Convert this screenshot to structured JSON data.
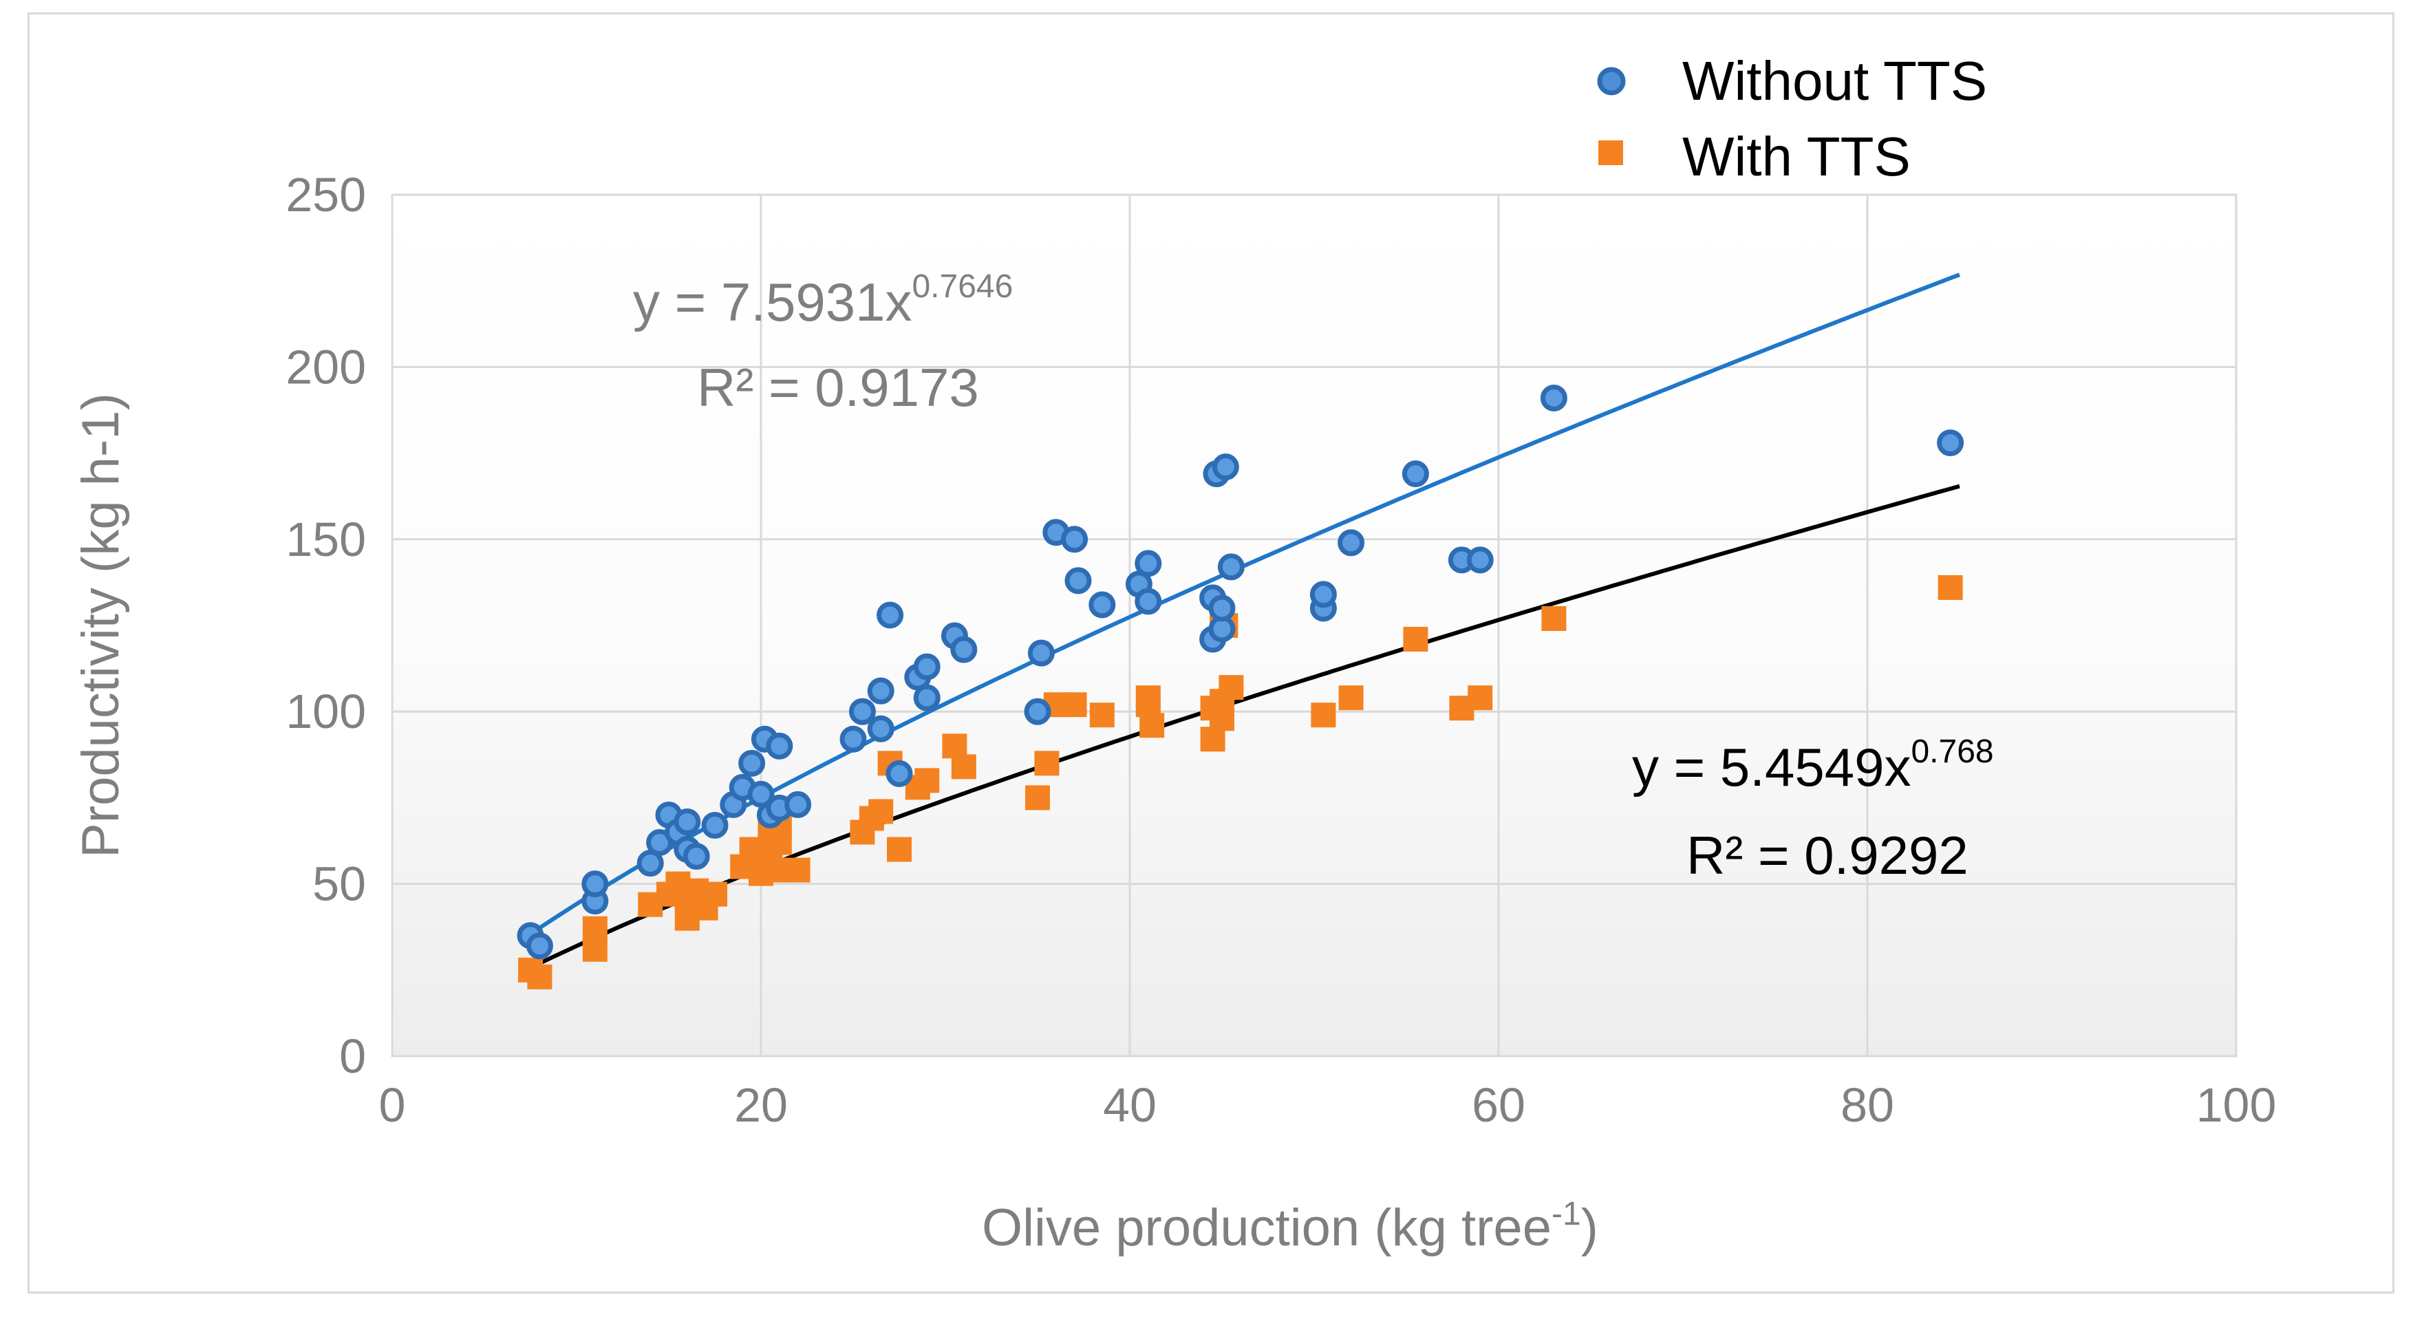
{
  "chart_data": {
    "type": "scatter",
    "title": "",
    "xlabel": "Olive production (kg tree",
    "xlabel_sup": "-1",
    "xlabel_suffix": ")",
    "ylabel": "Productivity (kg h-1)",
    "xlim": [
      0,
      100
    ],
    "ylim": [
      0,
      250
    ],
    "x_ticks": [
      0,
      20,
      40,
      60,
      80,
      100
    ],
    "y_ticks": [
      0,
      50,
      100,
      150,
      200,
      250
    ],
    "x_tick_labels": [
      "0",
      "20",
      "40",
      "60",
      "80",
      "100"
    ],
    "y_tick_labels": [
      "0",
      "50",
      "100",
      "150",
      "200",
      "250"
    ],
    "grid": true,
    "legend_position": "top-right",
    "series": [
      {
        "name": "Without TTS",
        "marker": "circle",
        "color": "#4472c4",
        "edge_color": "#2e6db4",
        "points": [
          [
            7.5,
            35
          ],
          [
            8,
            32
          ],
          [
            11,
            45
          ],
          [
            11,
            50
          ],
          [
            14,
            56
          ],
          [
            14.5,
            62
          ],
          [
            15,
            70
          ],
          [
            15.5,
            65
          ],
          [
            16,
            60
          ],
          [
            16,
            68
          ],
          [
            16.5,
            58
          ],
          [
            17.5,
            67
          ],
          [
            18.5,
            73
          ],
          [
            19,
            78
          ],
          [
            19.5,
            85
          ],
          [
            20,
            76
          ],
          [
            20.2,
            92
          ],
          [
            20.5,
            70
          ],
          [
            21,
            90
          ],
          [
            21,
            72
          ],
          [
            22,
            73
          ],
          [
            25,
            92
          ],
          [
            25.5,
            100
          ],
          [
            26.5,
            95
          ],
          [
            26.5,
            106
          ],
          [
            27,
            128
          ],
          [
            27.5,
            82
          ],
          [
            28.5,
            110
          ],
          [
            29,
            104
          ],
          [
            29,
            113
          ],
          [
            30.5,
            122
          ],
          [
            31,
            118
          ],
          [
            35,
            100
          ],
          [
            35.2,
            117
          ],
          [
            36,
            152
          ],
          [
            37,
            150
          ],
          [
            37.2,
            138
          ],
          [
            38.5,
            131
          ],
          [
            40.5,
            137
          ],
          [
            41,
            143
          ],
          [
            41,
            132
          ],
          [
            44.5,
            121
          ],
          [
            44.5,
            133
          ],
          [
            44.7,
            169
          ],
          [
            45,
            124
          ],
          [
            45,
            130
          ],
          [
            45.2,
            171
          ],
          [
            45.5,
            142
          ],
          [
            50.5,
            130
          ],
          [
            50.5,
            134
          ],
          [
            52,
            149
          ],
          [
            55.5,
            169
          ],
          [
            58,
            144
          ],
          [
            59,
            144
          ],
          [
            63,
            191
          ],
          [
            84.5,
            178
          ]
        ],
        "trendline": {
          "type": "power",
          "a": 7.5931,
          "b": 0.7646,
          "x_range": [
            8,
            85
          ]
        },
        "equation_prefix": "y = 7.5931x",
        "equation_exp": "0.7646",
        "r2_label": "R² = 0.9173",
        "equation_color": "#7f7f7f"
      },
      {
        "name": "With TTS",
        "marker": "square",
        "color": "#f58220",
        "edge_color": "#f58220",
        "points": [
          [
            7.5,
            25
          ],
          [
            8,
            23
          ],
          [
            11,
            37
          ],
          [
            11,
            31
          ],
          [
            14,
            44
          ],
          [
            15,
            47
          ],
          [
            15.5,
            50
          ],
          [
            16,
            40
          ],
          [
            16,
            45
          ],
          [
            16.5,
            48
          ],
          [
            17,
            43
          ],
          [
            17.5,
            47
          ],
          [
            19,
            55
          ],
          [
            19.5,
            60
          ],
          [
            20,
            53
          ],
          [
            20.5,
            58
          ],
          [
            20.5,
            65
          ],
          [
            21,
            62
          ],
          [
            21,
            68
          ],
          [
            21,
            54
          ],
          [
            22,
            54
          ],
          [
            25.5,
            65
          ],
          [
            26,
            69
          ],
          [
            26.5,
            71
          ],
          [
            27,
            85
          ],
          [
            27.5,
            60
          ],
          [
            28.5,
            78
          ],
          [
            29,
            80
          ],
          [
            30.5,
            90
          ],
          [
            31,
            84
          ],
          [
            35,
            75
          ],
          [
            35.5,
            85
          ],
          [
            36,
            102
          ],
          [
            37,
            102
          ],
          [
            38.5,
            99
          ],
          [
            41,
            104
          ],
          [
            41,
            102
          ],
          [
            41.2,
            96
          ],
          [
            44.5,
            92
          ],
          [
            44.5,
            101
          ],
          [
            45,
            103
          ],
          [
            45,
            98
          ],
          [
            45,
            128
          ],
          [
            45.2,
            125
          ],
          [
            45.5,
            107
          ],
          [
            50.5,
            99
          ],
          [
            52,
            104
          ],
          [
            55.5,
            121
          ],
          [
            58,
            101
          ],
          [
            59,
            104
          ],
          [
            63,
            127
          ],
          [
            84.5,
            136
          ]
        ],
        "trendline": {
          "type": "power",
          "a": 5.4549,
          "b": 0.768,
          "x_range": [
            8,
            85
          ]
        },
        "equation_prefix": "y = 5.4549x",
        "equation_exp": "0.768",
        "r2_label": "R² = 0.9292",
        "equation_color": "#000000"
      }
    ]
  }
}
